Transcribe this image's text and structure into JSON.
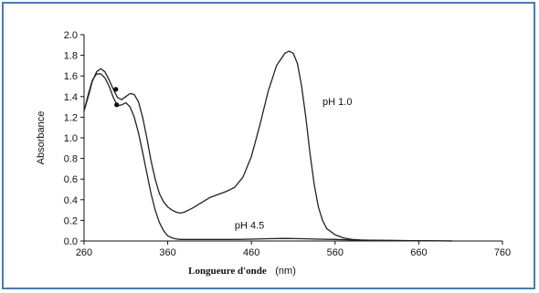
{
  "chart_data": {
    "type": "line",
    "title": "",
    "xlabel_main": "Longueure d'onde",
    "xlabel_unit": "(nm)",
    "ylabel": "Absorbance",
    "xlim": [
      260,
      760
    ],
    "ylim": [
      0,
      2.0
    ],
    "x_ticks": [
      "260",
      "360",
      "460",
      "560",
      "660",
      "760"
    ],
    "y_ticks": [
      "0.0",
      "0.2",
      "0.4",
      "0.6",
      "0.8",
      "1.0",
      "1.2",
      "1.4",
      "1.6",
      "1.8",
      "2.0"
    ],
    "grid": false,
    "series": [
      {
        "name": "pH 1.0",
        "x": [
          260,
          265,
          270,
          275,
          280,
          285,
          290,
          295,
          300,
          305,
          310,
          315,
          320,
          325,
          330,
          335,
          340,
          345,
          350,
          355,
          360,
          365,
          370,
          375,
          380,
          385,
          390,
          400,
          410,
          420,
          430,
          440,
          450,
          460,
          470,
          480,
          490,
          500,
          505,
          510,
          515,
          520,
          525,
          530,
          535,
          540,
          545,
          550,
          560,
          570,
          580,
          590,
          600,
          620,
          650,
          700
        ],
        "y": [
          1.26,
          1.4,
          1.55,
          1.64,
          1.67,
          1.64,
          1.56,
          1.47,
          1.39,
          1.37,
          1.4,
          1.43,
          1.42,
          1.35,
          1.2,
          1.0,
          0.78,
          0.6,
          0.46,
          0.38,
          0.33,
          0.3,
          0.28,
          0.27,
          0.28,
          0.3,
          0.32,
          0.37,
          0.42,
          0.45,
          0.48,
          0.52,
          0.62,
          0.82,
          1.12,
          1.45,
          1.7,
          1.82,
          1.84,
          1.82,
          1.72,
          1.5,
          1.2,
          0.85,
          0.55,
          0.33,
          0.2,
          0.12,
          0.06,
          0.03,
          0.015,
          0.01,
          0.008,
          0.005,
          0.003,
          0.0
        ]
      },
      {
        "name": "pH 4.5",
        "x": [
          260,
          265,
          270,
          275,
          280,
          285,
          290,
          295,
          300,
          305,
          310,
          315,
          320,
          325,
          330,
          335,
          340,
          345,
          350,
          355,
          360,
          365,
          370,
          375,
          380,
          390,
          400,
          420,
          440,
          460,
          480,
          500,
          520,
          540,
          560,
          580,
          600,
          650,
          700
        ],
        "y": [
          1.26,
          1.42,
          1.56,
          1.62,
          1.62,
          1.58,
          1.5,
          1.39,
          1.31,
          1.32,
          1.34,
          1.3,
          1.2,
          1.05,
          0.86,
          0.66,
          0.46,
          0.3,
          0.18,
          0.1,
          0.05,
          0.03,
          0.02,
          0.015,
          0.015,
          0.015,
          0.015,
          0.015,
          0.015,
          0.018,
          0.022,
          0.025,
          0.022,
          0.018,
          0.015,
          0.01,
          0.008,
          0.003,
          0.0
        ]
      }
    ],
    "markers": [
      {
        "x": 298,
        "y": 1.47
      },
      {
        "x": 299,
        "y": 1.32
      }
    ],
    "annotations": [
      {
        "text": "pH 1.0",
        "x": 545,
        "y": 1.32
      },
      {
        "text": "pH 4.5",
        "x": 440,
        "y": 0.12
      }
    ]
  }
}
